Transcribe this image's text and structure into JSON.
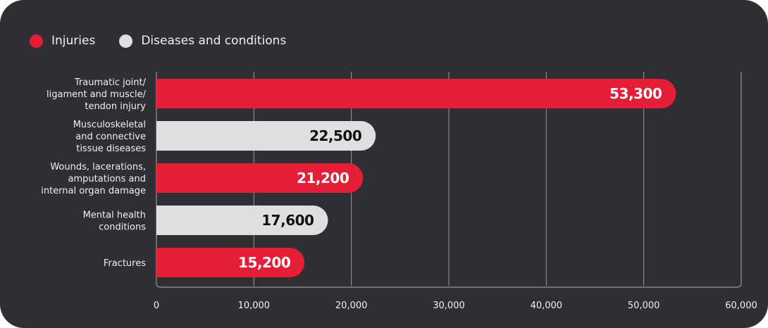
{
  "colors": {
    "background": "#2f2e33",
    "injuries": "#e41e36",
    "diseases": "#dedfe1",
    "grid": "#9a999e",
    "text": "#f0f0f0"
  },
  "legend": [
    {
      "name": "Injuries",
      "color": "#e41e36"
    },
    {
      "name": "Diseases and conditions",
      "color": "#dedfe1"
    }
  ],
  "chart_data": {
    "type": "bar",
    "orientation": "horizontal",
    "categories": [
      [
        "Traumatic joint/",
        "ligament and muscle/",
        "tendon injury"
      ],
      [
        "Musculoskeletal",
        "and connective",
        "tissue diseases"
      ],
      [
        "Wounds, lacerations,",
        "amputations and",
        "internal organ damage"
      ],
      [
        "Mental health",
        "conditions"
      ],
      [
        "Fractures"
      ]
    ],
    "values": [
      53300,
      22500,
      21200,
      17600,
      15200
    ],
    "value_labels": [
      "53,300",
      "22,500",
      "21,200",
      "17,600",
      "15,200"
    ],
    "groups": [
      "Injuries",
      "Diseases and conditions",
      "Injuries",
      "Diseases and conditions",
      "Injuries"
    ],
    "xlim": [
      0,
      60000
    ],
    "xticks": [
      0,
      10000,
      20000,
      30000,
      40000,
      50000,
      60000
    ],
    "xtick_labels": [
      "0",
      "10,000",
      "20,000",
      "30,000",
      "40,000",
      "50,000",
      "60,000"
    ],
    "grid": true,
    "legend_position": "top-left"
  }
}
